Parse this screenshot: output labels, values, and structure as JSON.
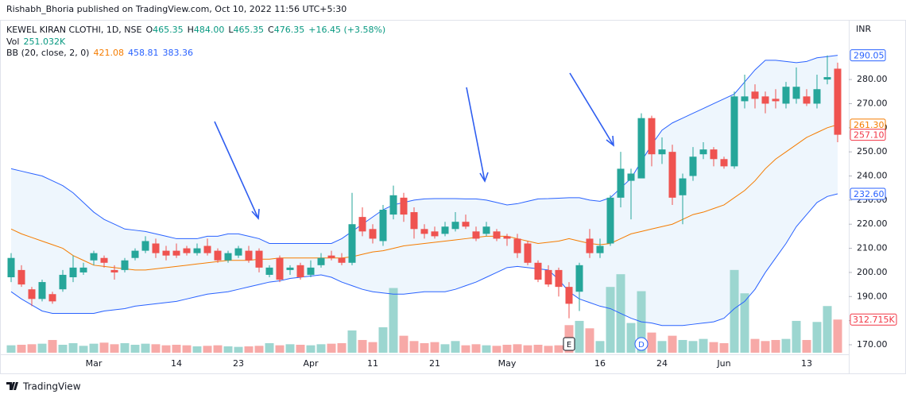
{
  "chart_data": {
    "type": "candlestick",
    "header": "Rishabh_Bhoria published on TradingView.com, Oct 10, 2022 11:56 UTC+5:30",
    "symbol": "KEWEL KIRAN CLOTHI, 1D, NSE",
    "legend": {
      "labels": [
        "O",
        "H",
        "L",
        "C"
      ],
      "values": [
        "465.35",
        "484.00",
        "465.35",
        "476.35"
      ],
      "change": "+16.45 (+3.58%)",
      "volume_label": "Vol",
      "volume": "251.032K",
      "bb_label": "BB (20, close, 2, 0)",
      "bb_values": [
        "421.08",
        "458.81",
        "383.36"
      ]
    },
    "currency": "INR",
    "brand": "TradingView",
    "categories": [
      null,
      null,
      null,
      null,
      null,
      null,
      null,
      null,
      "Mar",
      null,
      null,
      null,
      null,
      null,
      null,
      null,
      "14",
      null,
      null,
      null,
      null,
      null,
      "23",
      null,
      null,
      null,
      null,
      null,
      null,
      "Apr",
      null,
      null,
      null,
      null,
      null,
      "11",
      null,
      null,
      null,
      null,
      null,
      "21",
      null,
      null,
      null,
      null,
      null,
      null,
      "May",
      null,
      null,
      null,
      null,
      null,
      null,
      null,
      null,
      "16",
      null,
      null,
      null,
      null,
      null,
      "24",
      null,
      null,
      null,
      null,
      null,
      "Jun",
      null,
      null,
      null,
      null,
      null,
      null,
      null,
      "13",
      null,
      null,
      null
    ],
    "open": [
      198,
      201,
      193,
      189,
      191,
      193,
      198,
      200,
      205,
      206,
      201,
      201,
      206,
      209,
      212,
      209,
      209,
      210,
      208,
      211,
      209,
      205,
      207,
      209,
      209,
      199,
      206,
      201,
      203,
      199,
      203,
      207,
      206,
      204,
      223,
      218,
      213,
      224,
      231,
      225,
      218,
      217,
      216,
      218,
      221,
      217,
      216,
      217,
      215,
      214,
      212,
      204,
      201,
      201,
      194,
      192,
      214,
      208,
      212,
      231,
      238,
      239,
      264,
      249,
      250,
      232,
      240,
      249,
      251,
      247,
      244,
      271,
      275,
      273,
      272,
      270,
      272,
      273,
      270,
      280,
      284.5
    ],
    "high": [
      208,
      203,
      194,
      197,
      192,
      201,
      207,
      204,
      209,
      207,
      203,
      206,
      210,
      215,
      214,
      211,
      212,
      211,
      212,
      214,
      210,
      209,
      211,
      211,
      210,
      203,
      207,
      203,
      204,
      205,
      208,
      209,
      208,
      233,
      227,
      220,
      228,
      236,
      233,
      227,
      220,
      219,
      221,
      225,
      224,
      219,
      221,
      218,
      216,
      216,
      213,
      205,
      203,
      202,
      196,
      204,
      218,
      214,
      232,
      250,
      243,
      266,
      265,
      256,
      253,
      241,
      252,
      254,
      252,
      248,
      275,
      282,
      278,
      275,
      276,
      279,
      285,
      276,
      282,
      290,
      287
    ],
    "low": [
      196,
      194,
      186,
      188,
      187,
      192,
      196,
      199,
      203,
      202,
      197,
      200,
      205,
      208,
      206,
      205,
      206,
      207,
      207,
      207,
      204,
      204,
      206,
      204,
      200,
      198,
      196,
      199,
      197,
      198,
      202,
      205,
      203,
      203,
      215,
      212,
      211,
      222,
      221,
      214,
      214,
      214,
      215,
      217,
      218,
      213,
      215,
      213,
      211,
      206,
      203,
      196,
      194,
      190,
      181,
      184,
      206,
      206,
      211,
      227,
      222,
      240,
      244,
      245,
      228,
      220,
      238,
      247,
      244,
      243,
      243,
      268,
      268,
      266,
      268,
      268,
      270,
      269,
      268,
      278,
      254
    ],
    "close": [
      206,
      195,
      189,
      196,
      188,
      199,
      202,
      202,
      208,
      204,
      200,
      205,
      209,
      213,
      208,
      207,
      207,
      208,
      210,
      208,
      205,
      208,
      210,
      205,
      202,
      202,
      197,
      202,
      198,
      202,
      206,
      206,
      204,
      220,
      217,
      214,
      226,
      232,
      224,
      218,
      216,
      215,
      219,
      221,
      219,
      214,
      219,
      214,
      214,
      208,
      204,
      197,
      195,
      194,
      187,
      203,
      208,
      211,
      231,
      243,
      241,
      264,
      249,
      251,
      231,
      239,
      248,
      251,
      247,
      244,
      273,
      273,
      272,
      270,
      271,
      277,
      277,
      270,
      276,
      281,
      257.1
    ],
    "up_color": "#26a69a",
    "down_color": "#ef5350",
    "volume": {
      "values": [
        70,
        75,
        80,
        85,
        120,
        75,
        90,
        65,
        85,
        95,
        80,
        90,
        75,
        85,
        80,
        70,
        75,
        70,
        60,
        65,
        70,
        60,
        55,
        60,
        65,
        90,
        70,
        80,
        75,
        70,
        80,
        85,
        90,
        210,
        120,
        100,
        240,
        610,
        160,
        110,
        90,
        100,
        80,
        110,
        70,
        80,
        70,
        65,
        75,
        80,
        70,
        75,
        65,
        70,
        260,
        300,
        230,
        110,
        620,
        740,
        280,
        580,
        190,
        110,
        160,
        120,
        110,
        130,
        100,
        90,
        780,
        560,
        130,
        110,
        120,
        130,
        300,
        120,
        290,
        440,
        312.715
      ],
      "lim": [
        0,
        3100
      ],
      "up_color": "#9cd6d0",
      "down_color": "#f7a9a7"
    },
    "bollinger": {
      "upper": [
        243,
        242,
        241,
        240,
        238,
        236,
        233,
        229,
        225,
        222,
        220,
        218,
        217.5,
        217,
        216,
        215,
        214,
        214,
        214,
        215,
        215,
        216,
        216,
        215,
        214,
        212,
        212,
        212,
        212,
        212,
        212,
        212,
        214,
        217,
        220,
        223,
        226,
        228,
        229,
        230,
        230.5,
        230.6,
        230.6,
        230.6,
        230.5,
        230.5,
        230,
        229,
        228,
        228.5,
        229.5,
        230.5,
        230.6,
        230.8,
        231,
        231,
        230,
        229.5,
        231,
        235,
        239,
        246,
        253,
        259,
        262,
        264,
        266,
        268,
        270,
        272,
        274,
        279,
        284,
        288,
        288,
        287.5,
        287,
        287.5,
        289,
        289.5,
        290.05
      ],
      "middle": [
        218,
        216,
        214.5,
        213,
        211.5,
        210,
        207,
        205,
        203,
        202.5,
        202,
        201.5,
        201,
        201,
        201.5,
        202,
        202.5,
        203,
        203.5,
        204,
        204.5,
        205,
        205,
        205,
        205.5,
        205.5,
        206,
        206,
        206,
        206,
        206,
        206,
        206,
        206.5,
        207.5,
        208.5,
        209,
        210,
        211,
        211.5,
        212,
        212.5,
        213,
        213.5,
        214,
        214.5,
        215,
        215,
        215,
        214,
        213,
        212,
        212.5,
        213,
        214,
        213,
        212,
        211.5,
        212,
        214,
        216,
        217,
        218,
        219,
        220,
        222,
        224,
        225,
        226.5,
        228,
        231,
        234,
        238,
        243,
        247,
        250,
        253,
        256,
        258,
        260,
        261.3
      ],
      "lower": [
        192,
        189,
        186.5,
        184,
        183,
        183,
        183,
        183,
        183,
        184,
        184.5,
        185,
        186,
        186.5,
        187,
        187.5,
        188,
        189,
        190,
        191,
        191.5,
        192,
        193,
        194,
        195,
        196,
        196.5,
        197.5,
        198,
        198.5,
        199,
        198,
        196,
        194.5,
        193,
        192,
        191.5,
        191,
        191,
        191.5,
        192,
        192,
        192,
        193,
        194.5,
        196,
        198,
        200,
        202,
        202.5,
        202,
        201.5,
        201,
        197,
        192,
        189,
        187.5,
        186,
        185,
        183,
        181,
        179.5,
        179,
        178,
        178,
        178,
        178.5,
        179,
        179.5,
        181,
        185,
        188,
        193,
        200,
        206,
        212,
        219,
        224,
        229,
        231.5,
        232.6
      ],
      "band_color": "#2962ff",
      "middle_color": "#f57c00",
      "fill": "#e3f0fb"
    },
    "ylim": [
      166.7,
      303.1
    ],
    "yticks": [
      {
        "value": 170,
        "label": "170.00"
      },
      {
        "value": 180,
        "label": "180.00"
      },
      {
        "value": 190,
        "label": "190.00"
      },
      {
        "value": 200,
        "label": "200.00"
      },
      {
        "value": 210,
        "label": "210.00"
      },
      {
        "value": 220,
        "label": "220.00"
      },
      {
        "value": 230,
        "label": "230.00"
      },
      {
        "value": 240,
        "label": "240.00"
      },
      {
        "value": 250,
        "label": "250.00"
      },
      {
        "value": 260,
        "label": "260.00"
      },
      {
        "value": 270,
        "label": "270.00"
      },
      {
        "value": 280,
        "label": "280.00"
      }
    ],
    "price_markers": [
      {
        "value": 290.05,
        "label": "290.05",
        "color": "#2962ff"
      },
      {
        "value": 261.3,
        "label": "261.30",
        "color": "#f57c00"
      },
      {
        "value": 257.1,
        "label": "257.10",
        "color": "#f23645"
      },
      {
        "value": 232.6,
        "label": "232.60",
        "color": "#2962ff"
      }
    ],
    "volume_marker": {
      "value": 312.715,
      "label": "312.715K",
      "color": "#f23645"
    },
    "events": [
      {
        "index": 54,
        "label": "E",
        "color": "#131722"
      },
      {
        "index": 61,
        "label": "D",
        "color": "#2962ff"
      }
    ]
  }
}
